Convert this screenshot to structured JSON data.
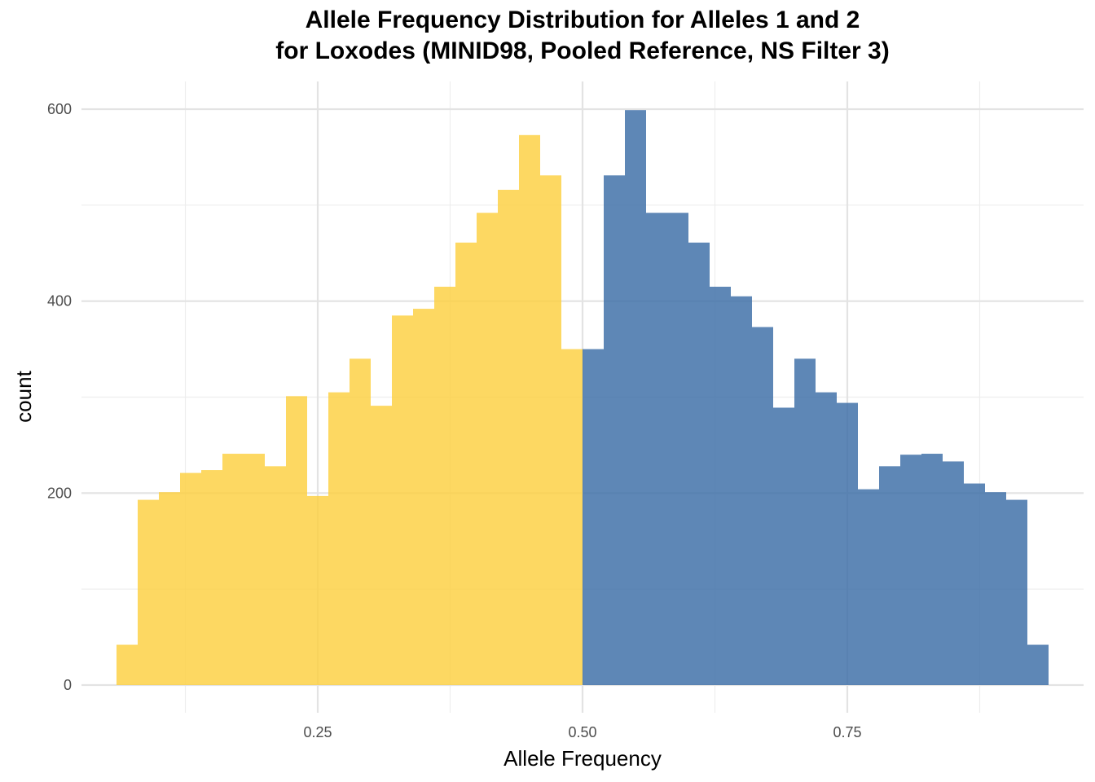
{
  "chart_data": {
    "type": "bar",
    "title_line1": "Allele Frequency Distribution for Alleles 1 and 2",
    "title_line2": "for  Loxodes (MINID98, Pooled Reference, NS Filter 3)",
    "xlabel": "Allele Frequency",
    "ylabel": "count",
    "xlim": [
      0.04,
      0.96
    ],
    "ylim": [
      0,
      600
    ],
    "bin_width": 0.02,
    "x_ticks": [
      0.25,
      0.5,
      0.75
    ],
    "x_tick_labels": [
      "0.25",
      "0.50",
      "0.75"
    ],
    "y_ticks": [
      0,
      200,
      400,
      600
    ],
    "y_tick_labels": [
      "0",
      "200",
      "400",
      "600"
    ],
    "grid": true,
    "legend": "none",
    "series": [
      {
        "color": "#FCCF3F",
        "bin_starts": [
          0.06,
          0.08,
          0.1,
          0.12,
          0.14,
          0.16,
          0.18,
          0.2,
          0.22,
          0.24,
          0.26,
          0.28,
          0.3,
          0.32,
          0.34,
          0.36,
          0.38,
          0.4,
          0.42,
          0.44,
          0.46,
          0.48
        ],
        "values": [
          42,
          193,
          201,
          221,
          224,
          241,
          241,
          228,
          301,
          197,
          305,
          340,
          291,
          385,
          392,
          415,
          461,
          492,
          516,
          573,
          531,
          350
        ]
      },
      {
        "color": "#3A6CA6",
        "bin_starts": [
          0.5,
          0.52,
          0.54,
          0.56,
          0.58,
          0.6,
          0.62,
          0.64,
          0.66,
          0.68,
          0.7,
          0.72,
          0.74,
          0.76,
          0.78,
          0.8,
          0.82,
          0.84,
          0.86,
          0.88,
          0.9,
          0.92
        ],
        "values": [
          350,
          531,
          599,
          492,
          492,
          461,
          415,
          405,
          373,
          289,
          340,
          305,
          294,
          204,
          228,
          240,
          241,
          233,
          210,
          201,
          193,
          42
        ]
      }
    ]
  }
}
